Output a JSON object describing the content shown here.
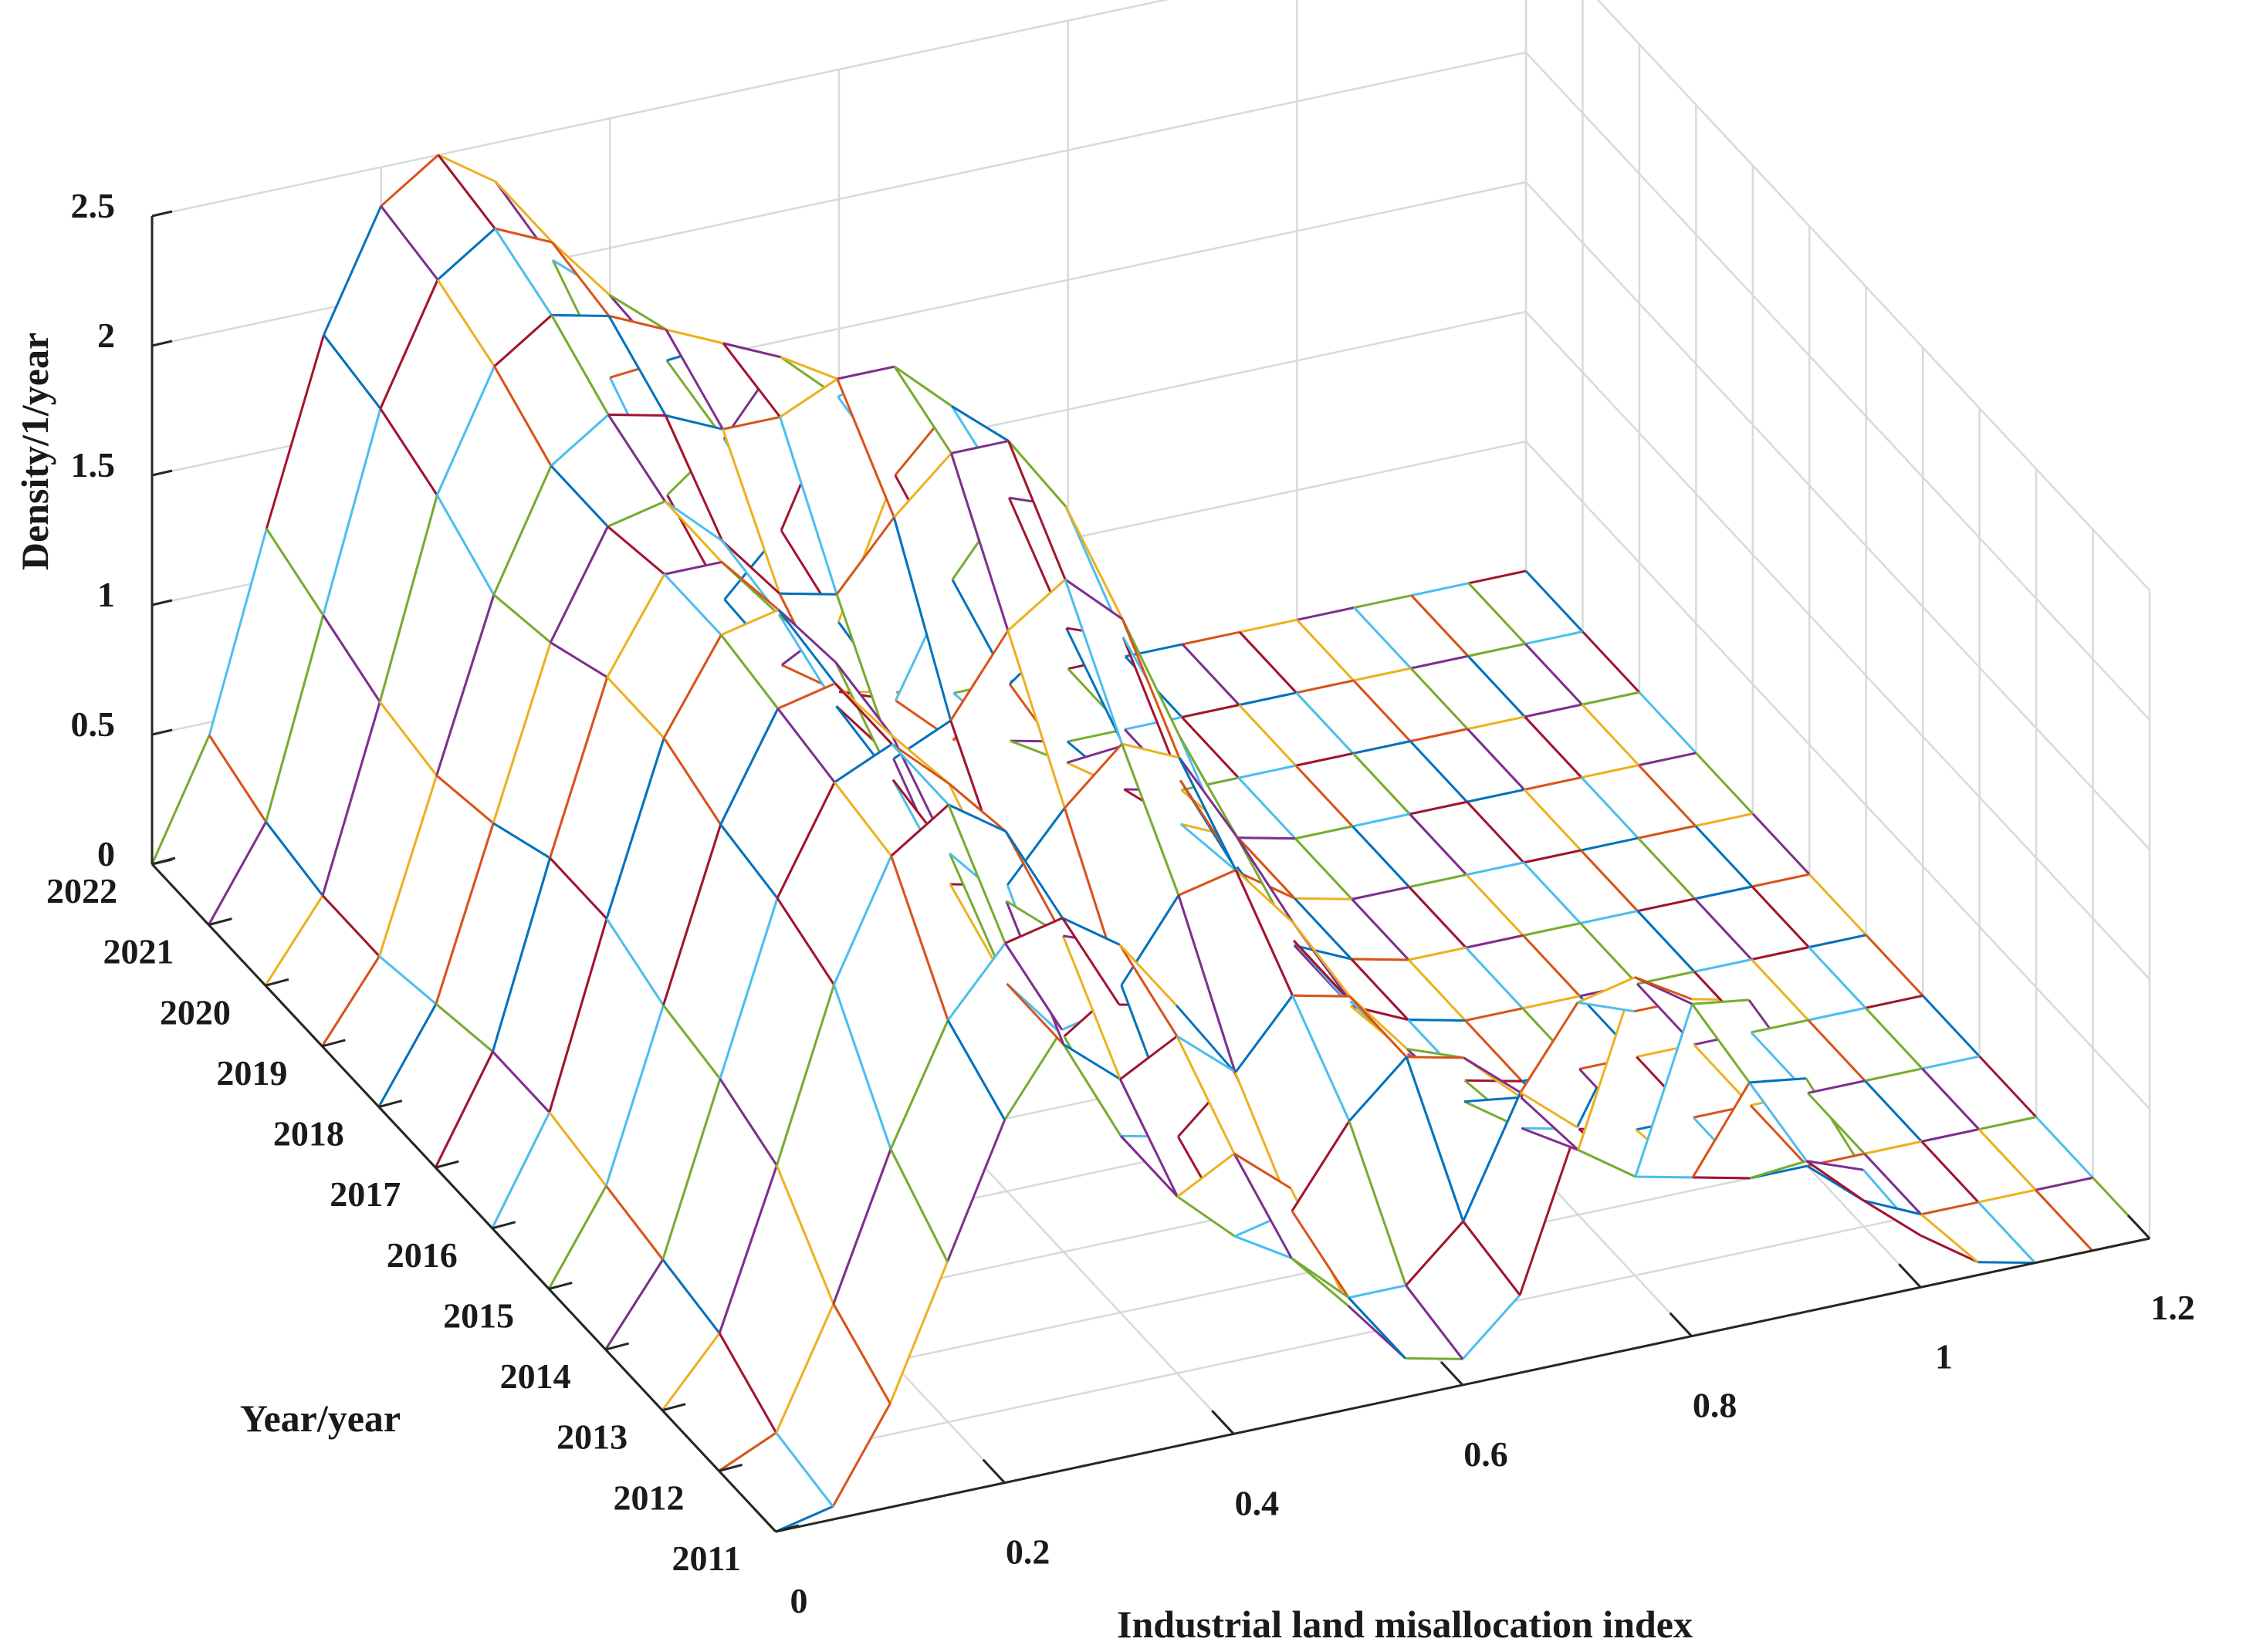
{
  "chart_data": {
    "type": "surface",
    "title": "",
    "xlabel": "Industrial land misallocation index",
    "ylabel": "Year/year",
    "zlabel": "Density/1/year",
    "xlim": [
      0,
      1.2
    ],
    "ylim": [
      2011,
      2022
    ],
    "zlim": [
      0,
      2.5
    ],
    "x_ticks": [
      "0",
      "0.2",
      "0.4",
      "0.6",
      "0.8",
      "1",
      "1.2"
    ],
    "y_ticks": [
      "2011",
      "2012",
      "2013",
      "2014",
      "2015",
      "2016",
      "2017",
      "2018",
      "2019",
      "2020",
      "2021",
      "2022"
    ],
    "z_ticks": [
      "0",
      "0.5",
      "1",
      "1.5",
      "2",
      "2.5"
    ],
    "grid": true,
    "x": [
      0,
      0.05,
      0.1,
      0.15,
      0.2,
      0.25,
      0.3,
      0.35,
      0.4,
      0.45,
      0.5,
      0.55,
      0.6,
      0.65,
      0.7,
      0.75,
      0.8,
      0.85,
      0.9,
      0.95,
      1.0,
      1.05,
      1.1,
      1.15,
      1.2
    ],
    "years": [
      2011,
      2012,
      2013,
      2014,
      2015,
      2016,
      2017,
      2018,
      2019,
      2020,
      2021,
      2022
    ],
    "series": [
      {
        "year": 2011,
        "values": [
          0,
          0.05,
          0.4,
          0.9,
          1.4,
          1.7,
          1.75,
          1.7,
          1.4,
          0.9,
          0.4,
          0.15,
          0.1,
          0.3,
          0.9,
          1.3,
          1.3,
          1.25,
          0.9,
          0.5,
          0.2,
          0.05,
          0,
          0,
          0
        ]
      },
      {
        "year": 2012,
        "values": [
          0,
          0.1,
          0.55,
          1.1,
          1.55,
          1.8,
          1.85,
          1.7,
          1.3,
          0.8,
          0.35,
          0.15,
          0.15,
          0.35,
          0.8,
          1.1,
          1.15,
          1.0,
          0.65,
          0.3,
          0.1,
          0,
          0,
          0,
          0
        ]
      },
      {
        "year": 2013,
        "values": [
          0,
          0.25,
          0.85,
          1.5,
          1.95,
          2.1,
          1.95,
          1.5,
          0.9,
          0.4,
          0.2,
          0.25,
          0.55,
          0.75,
          0.7,
          0.5,
          0.25,
          0.1,
          0.05,
          0,
          0,
          0,
          0,
          0,
          0
        ]
      },
      {
        "year": 2014,
        "values": [
          0,
          0.3,
          0.95,
          1.6,
          2.0,
          2.1,
          1.9,
          1.4,
          0.8,
          0.4,
          0.35,
          0.55,
          0.8,
          0.75,
          0.5,
          0.25,
          0.1,
          0.05,
          0,
          0,
          0,
          0,
          0,
          0,
          0
        ]
      },
      {
        "year": 2015,
        "values": [
          0,
          0.35,
          1.0,
          1.65,
          2.05,
          2.1,
          1.85,
          1.35,
          0.8,
          0.55,
          0.7,
          1.0,
          1.05,
          0.8,
          0.45,
          0.2,
          0.05,
          0,
          0,
          0,
          0,
          0,
          0,
          0,
          0
        ]
      },
      {
        "year": 2016,
        "values": [
          0,
          0.4,
          1.1,
          1.75,
          2.1,
          2.15,
          1.9,
          1.4,
          0.95,
          0.9,
          1.15,
          1.35,
          1.25,
          0.9,
          0.45,
          0.15,
          0.05,
          0,
          0,
          0,
          0,
          0,
          0,
          0,
          0
        ]
      },
      {
        "year": 2017,
        "values": [
          0,
          0.4,
          1.1,
          1.75,
          2.1,
          2.1,
          1.85,
          1.45,
          1.2,
          1.3,
          1.6,
          1.75,
          1.55,
          1.05,
          0.5,
          0.15,
          0.05,
          0,
          0,
          0,
          0,
          0,
          0,
          0,
          0
        ]
      },
      {
        "year": 2018,
        "values": [
          0,
          0.35,
          1.0,
          1.65,
          2.05,
          2.1,
          1.9,
          1.65,
          1.6,
          1.85,
          2.05,
          2.05,
          1.75,
          1.2,
          0.6,
          0.2,
          0.05,
          0,
          0,
          0,
          0,
          0,
          0,
          0,
          0
        ]
      },
      {
        "year": 2019,
        "values": [
          0,
          0.3,
          0.95,
          1.6,
          2.05,
          2.2,
          2.15,
          2.05,
          2.05,
          2.15,
          2.15,
          1.95,
          1.55,
          1.0,
          0.5,
          0.15,
          0.05,
          0,
          0,
          0,
          0,
          0,
          0,
          0,
          0
        ]
      },
      {
        "year": 2020,
        "values": [
          0,
          0.3,
          1.0,
          1.75,
          2.2,
          2.35,
          2.3,
          2.2,
          2.1,
          2.0,
          1.8,
          1.45,
          1.0,
          0.55,
          0.2,
          0.05,
          0,
          0,
          0,
          0,
          0,
          0,
          0,
          0,
          0
        ]
      },
      {
        "year": 2021,
        "values": [
          0,
          0.35,
          1.1,
          1.85,
          2.3,
          2.45,
          2.35,
          2.1,
          1.8,
          1.45,
          1.05,
          0.65,
          0.3,
          0.1,
          0.05,
          0,
          0,
          0,
          0,
          0,
          0,
          0,
          0,
          0,
          0
        ]
      },
      {
        "year": 2022,
        "values": [
          0,
          0.45,
          1.2,
          1.9,
          2.35,
          2.5,
          2.35,
          2.0,
          1.5,
          1.0,
          0.55,
          0.25,
          0.1,
          0.05,
          0,
          0,
          0,
          0,
          0,
          0,
          0,
          0,
          0,
          0,
          0
        ]
      }
    ],
    "line_colors": [
      "#0072BD",
      "#D95319",
      "#EDB120",
      "#7E2F8E",
      "#77AC30",
      "#4DBEEE",
      "#A2142F"
    ],
    "grid_color": "#d9d9d9",
    "axis_color": "#262626"
  }
}
